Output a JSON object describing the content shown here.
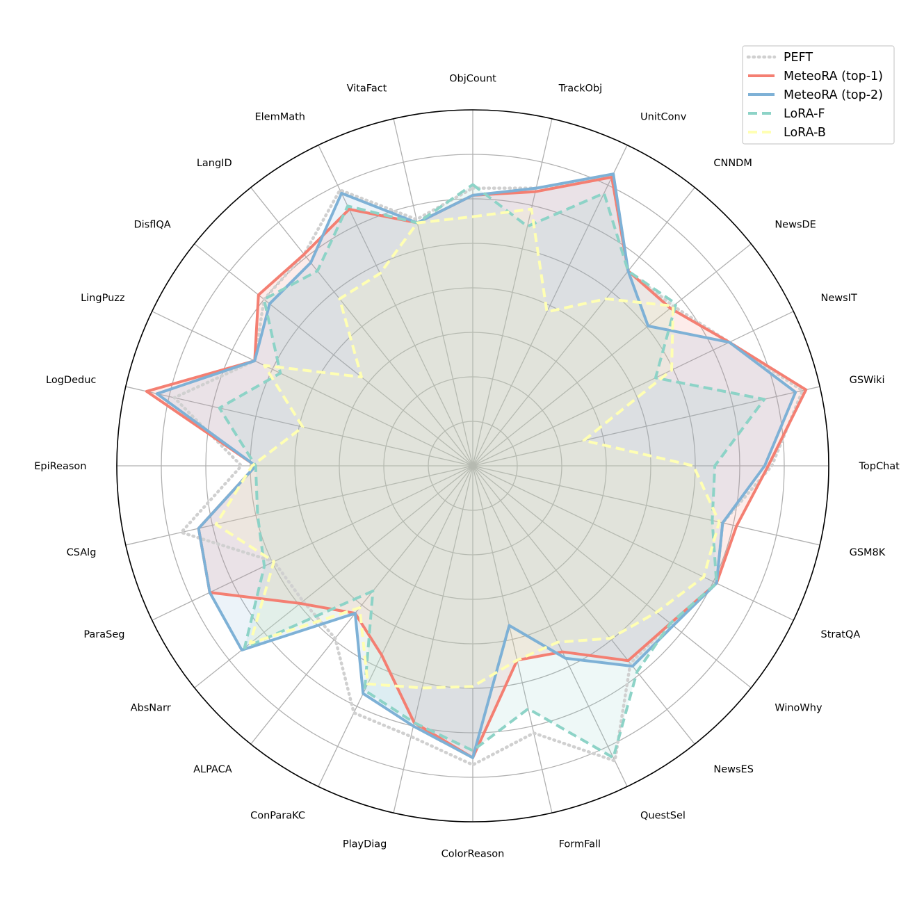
{
  "chart_data": {
    "type": "radar",
    "title": "",
    "rlim": [
      0,
      1
    ],
    "grid": true,
    "legend_position": "top-right",
    "categories": [
      "ObjCount",
      "TrackObj",
      "UnitConv",
      "CNNDM",
      "NewsDE",
      "NewsIT",
      "GSWiki",
      "TopChat",
      "GSM8K",
      "StratQA",
      "WinoWhy",
      "NewsES",
      "QuestSel",
      "FormFall",
      "ColorReason",
      "PlayDiag",
      "ConParaKC",
      "ALPACA",
      "AbsNarr",
      "ParaSeg",
      "CSAlg",
      "EpiReason",
      "LogDeduc",
      "LingPuzz",
      "DisflQA",
      "LangID",
      "ElemMath",
      "VitaFact"
    ],
    "series": [
      {
        "name": "PEFT",
        "color": "#d0d0d0",
        "style": "dotted",
        "fill": false,
        "values": [
          0.78,
          0.8,
          0.9,
          0.7,
          0.72,
          0.8,
          0.95,
          0.84,
          0.72,
          0.76,
          0.71,
          0.71,
          0.92,
          0.77,
          0.84,
          0.78,
          0.77,
          0.62,
          0.61,
          0.62,
          0.84,
          0.65,
          0.86,
          0.68,
          0.75,
          0.76,
          0.86,
          0.71
        ]
      },
      {
        "name": "MeteoRA (top-1)",
        "color": "#f47f72",
        "style": "solid",
        "fill": true,
        "values": [
          0.76,
          0.79,
          0.9,
          0.7,
          0.71,
          0.8,
          0.96,
          0.83,
          0.76,
          0.76,
          0.71,
          0.7,
          0.58,
          0.56,
          0.82,
          0.74,
          0.59,
          0.53,
          0.62,
          0.82,
          0.79,
          0.61,
          0.94,
          0.68,
          0.77,
          0.76,
          0.8,
          0.7
        ]
      },
      {
        "name": "MeteoRA (top-2)",
        "color": "#7eb1d6",
        "style": "solid",
        "fill": true,
        "values": [
          0.76,
          0.8,
          0.91,
          0.7,
          0.63,
          0.8,
          0.93,
          0.82,
          0.72,
          0.76,
          0.72,
          0.72,
          0.6,
          0.46,
          0.82,
          0.75,
          0.71,
          0.53,
          0.83,
          0.82,
          0.79,
          0.61,
          0.91,
          0.68,
          0.73,
          0.73,
          0.85,
          0.7
        ]
      },
      {
        "name": "LoRA-F",
        "color": "#8dd3c7",
        "style": "dashed",
        "fill": true,
        "values": [
          0.79,
          0.69,
          0.85,
          0.7,
          0.73,
          0.57,
          0.84,
          0.68,
          0.69,
          0.76,
          0.71,
          0.74,
          0.91,
          0.7,
          0.8,
          0.74,
          0.7,
          0.45,
          0.82,
          0.65,
          0.62,
          0.61,
          0.73,
          0.6,
          0.75,
          0.7,
          0.81,
          0.7
        ]
      },
      {
        "name": "LoRA-B",
        "color": "#ffffb3",
        "style": "dashed",
        "fill": true,
        "values": [
          0.7,
          0.74,
          0.48,
          0.6,
          0.72,
          0.62,
          0.32,
          0.62,
          0.71,
          0.72,
          0.66,
          0.62,
          0.55,
          0.56,
          0.62,
          0.64,
          0.68,
          0.51,
          0.8,
          0.62,
          0.74,
          0.62,
          0.49,
          0.65,
          0.4,
          0.6,
          0.6,
          0.7
        ]
      }
    ]
  }
}
